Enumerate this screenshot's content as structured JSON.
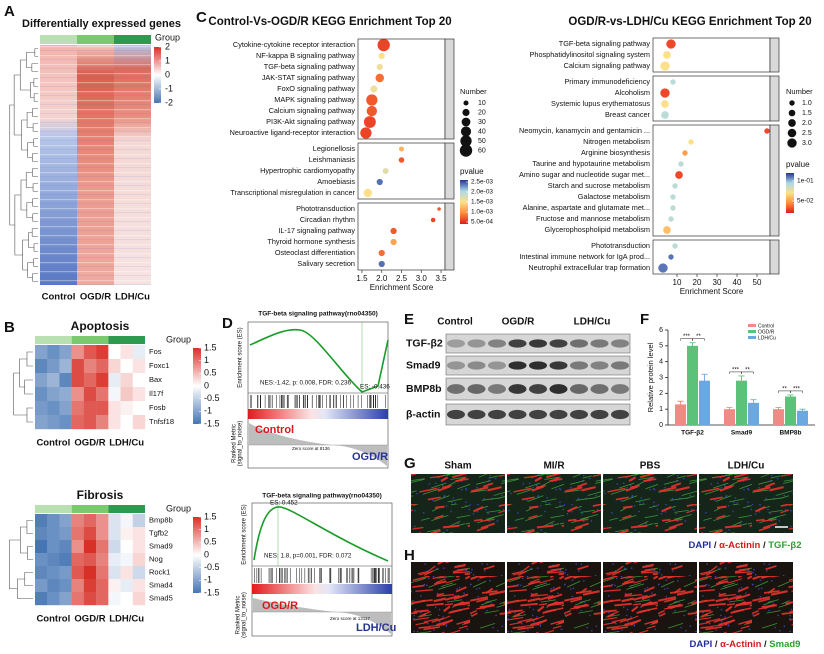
{
  "panel_labels": [
    "A",
    "B",
    "C",
    "D",
    "E",
    "F",
    "G",
    "H"
  ],
  "panel_a": {
    "title": "Differentially expressed genes",
    "legend_title": "Group",
    "scale_ticks": [
      2,
      1,
      0,
      -1,
      -2
    ],
    "groups": [
      "Control",
      "OGD/R",
      "LDH/Cu"
    ]
  },
  "panel_b": {
    "legend_title": "Group",
    "groups": [
      "Control",
      "OGD/R",
      "LDH/Cu"
    ],
    "scale_ticks": [
      1.5,
      1,
      0.5,
      0,
      -0.5,
      -1,
      -1.5
    ],
    "heatmaps": [
      {
        "title": "Apoptosis",
        "genes": [
          "Fos",
          "Foxc1",
          "Bax",
          "Il17f",
          "Fosb",
          "Tnfsf18"
        ],
        "values": [
          [
            -1,
            -1.2,
            -1,
            0.8,
            1.2,
            1.4,
            0,
            0.2,
            -0.2
          ],
          [
            -1.3,
            -1.1,
            -0.8,
            1.3,
            0.9,
            1.1,
            0.3,
            0,
            0.2
          ],
          [
            -1,
            -0.8,
            -1.3,
            1.3,
            1.1,
            1.4,
            -0.2,
            0.3,
            0
          ],
          [
            -1.2,
            -1,
            -0.9,
            0.8,
            1.3,
            1,
            -0.1,
            0.4,
            0.2
          ],
          [
            -1.1,
            -1.2,
            -1,
            1,
            1.2,
            1.2,
            0.2,
            0.1,
            0
          ],
          [
            -1,
            -1.1,
            -1.2,
            1.1,
            1.2,
            0.9,
            0.2,
            0,
            0.3
          ]
        ]
      },
      {
        "title": "Fibrosis",
        "genes": [
          "Bmp8b",
          "Tgfb2",
          "Smad9",
          "Nog",
          "Rock1",
          "Smad4",
          "Smad5"
        ],
        "values": [
          [
            -1.4,
            -1.2,
            -1,
            0.9,
            1.1,
            0.8,
            -0.3,
            -0.1,
            -0.5
          ],
          [
            -1.3,
            -1.2,
            -1.1,
            1,
            1.3,
            0.8,
            -0.3,
            0.1,
            0.2
          ],
          [
            -1.5,
            -1.2,
            -1.3,
            0.8,
            1.5,
            1,
            -0.4,
            0,
            0.2
          ],
          [
            -1.2,
            -1.3,
            -1.4,
            1.1,
            1.2,
            0.9,
            -0.2,
            -0.1,
            0.3
          ],
          [
            -1.3,
            -1.2,
            -1.1,
            1.2,
            1.5,
            1,
            -0.3,
            0.2,
            -0.4
          ],
          [
            -1.1,
            -1.3,
            -1.2,
            0.9,
            1.4,
            1.1,
            0.1,
            -0.2,
            0.2
          ],
          [
            -1.4,
            -1.2,
            -1,
            1,
            1.3,
            1.1,
            -0.1,
            0,
            0.3
          ]
        ]
      }
    ]
  },
  "panel_c": [
    {
      "title": "Control-Vs-OGD/R KEGG Enrichment Top 20",
      "x_label": "Enrichment Score",
      "xlim": [
        1.4,
        3.6
      ],
      "xticks": [
        1.5,
        {
          "value": 2,
          "label": "2.0"
        },
        2.5,
        {
          "value": 3,
          "label": "3.0"
        },
        3.5
      ],
      "size_title": "Number",
      "size_ticks": [
        10,
        20,
        30,
        40,
        50,
        60
      ],
      "color_title": "pvalue",
      "colorlim": [
        0.0004,
        0.0026
      ],
      "color_ticks": [
        {
          "value": 0.0025,
          "label": "2.5e-03"
        },
        {
          "value": 0.002,
          "label": "2.0e-03"
        },
        {
          "value": 0.0015,
          "label": "1.5e-03"
        },
        {
          "value": 0.001,
          "label": "1.0e-03"
        },
        {
          "value": 0.0005,
          "label": "5.0e-04"
        }
      ],
      "facets": [
        {
          "terms": [
            "Cytokine-cytokine receptor interaction",
            "NF-kappa B signaling pathway",
            "TGF-beta signaling pathway",
            "JAK-STAT signaling pathway",
            "FoxO signaling pathway",
            "MAPK signaling pathway",
            "Calcium signaling pathway",
            "PI3K-Akt signaling pathway",
            "Neuroactive ligand-receptor interaction"
          ],
          "scores": [
            2.05,
            2.0,
            1.95,
            1.95,
            1.8,
            1.75,
            1.75,
            1.7,
            1.6
          ],
          "counts": [
            60,
            15,
            15,
            28,
            20,
            50,
            42,
            55,
            50
          ],
          "pvalues": [
            0.0006,
            0.0015,
            0.0016,
            0.0008,
            0.0016,
            0.0007,
            0.0007,
            0.0006,
            0.0006
          ]
        },
        {
          "terms": [
            "Legionellosis",
            "Leishmaniasis",
            "Hypertrophic cardiomyopathy",
            "Amoebiasis",
            "Transcriptional misregulation in cancer"
          ],
          "scores": [
            2.5,
            2.5,
            2.1,
            1.95,
            1.65
          ],
          "counts": [
            10,
            12,
            14,
            15,
            28
          ],
          "pvalues": [
            0.0012,
            0.0007,
            0.0017,
            0.0024,
            0.0015
          ]
        },
        {
          "terms": [
            "Phototransduction",
            "Circadian rhythm",
            "IL-17 signaling pathway",
            "Thyroid hormone synthesis",
            "Osteoclast differentiation",
            "Salivary secretion"
          ],
          "scores": [
            3.45,
            3.3,
            2.3,
            2.3,
            2.0,
            2.0
          ],
          "counts": [
            5,
            8,
            15,
            15,
            15,
            15
          ],
          "pvalues": [
            0.0007,
            0.0006,
            0.0007,
            0.0011,
            0.0008,
            0.0024
          ]
        }
      ]
    },
    {
      "title": "OGD/R-vs-LDH/Cu   KEGG Enrichment Top 20",
      "x_label": "Enrichment Score",
      "xlim": [
        -2,
        56.5
      ],
      "xticks": [
        10,
        20,
        30,
        40,
        50
      ],
      "size_title": "Number",
      "size_ticks": [
        {
          "value": 1,
          "label": "1.0"
        },
        1.5,
        {
          "value": 2,
          "label": "2.0"
        },
        2.5,
        {
          "value": 3,
          "label": "3.0"
        }
      ],
      "color_title": "pvalue",
      "colorlim": [
        0.02,
        0.12
      ],
      "color_ticks": [
        {
          "value": 0.1,
          "label": "1e-01"
        },
        {
          "value": 0.05,
          "label": "5e-02"
        }
      ],
      "facets": [
        {
          "terms": [
            "TGF-beta signaling pathway",
            "Phosphatidylinositol signaling system",
            "Calcium signaling pathway"
          ],
          "scores": [
            7,
            5,
            4
          ],
          "counts": [
            3,
            2,
            3
          ],
          "pvalues": [
            0.03,
            0.07,
            0.07
          ]
        },
        {
          "terms": [
            "Primary immunodeficiency",
            "Alcoholism",
            "Systemic lupus erythematosus",
            "Breast cancer"
          ],
          "scores": [
            8,
            4,
            4,
            4
          ],
          "counts": [
            1,
            3,
            2,
            2
          ],
          "pvalues": [
            0.09,
            0.03,
            0.07,
            0.09
          ]
        },
        {
          "terms": [
            "Neomycin, kanamycin and gentamicin ...",
            "Nitrogen metabolism",
            "Arginine biosynthesis",
            "Taurine and hypotaurine metabolism",
            "Amino sugar and nucleotide sugar met...",
            "Starch and sucrose metabolism",
            "Galactose metabolism",
            "Alanine, aspartate and glutamate met...",
            "Fructose and mannose metabolism",
            "Glycerophospholipid metabolism"
          ],
          "scores": [
            55,
            17,
            14,
            12,
            11,
            9,
            8,
            8,
            7,
            5
          ],
          "counts": [
            1,
            1,
            1,
            1,
            2,
            1,
            1,
            1,
            1,
            2
          ],
          "pvalues": [
            0.03,
            0.07,
            0.05,
            0.09,
            0.03,
            0.09,
            0.09,
            0.09,
            0.09,
            0.06
          ]
        },
        {
          "terms": [
            "Phototransduction",
            "Intestinal immune network for IgA prod...",
            "Neutrophil extracellular trap formation"
          ],
          "scores": [
            9,
            7,
            3
          ],
          "counts": [
            1,
            1,
            3
          ],
          "pvalues": [
            0.09,
            0.11,
            0.11
          ]
        }
      ]
    }
  ],
  "panel_d": {
    "plots": [
      {
        "title": "TGF-beta signaling pathway(rno04350)",
        "es_label": "Enrichment score (ES)",
        "stats": "NES:-1.42, p: 0.008, FDR: 0.236",
        "es": "ES: -0.436",
        "group_left": "Control",
        "group_right": "OGD/R",
        "metric_label": [
          "Ranked Metric",
          "(signal_to_noise)"
        ],
        "zero_score": "Zero score at 8136"
      },
      {
        "title": "TGF-beta signaling pathway(rno04350)",
        "es_label": "Enrichment score (ES)",
        "stats": "NES: 1.8, p=0.001, FDR: 0.072",
        "es": "ES: 0.452",
        "group_left": "OGD/R",
        "group_right": "LDH/Cu",
        "metric_label": [
          "Ranked Metric",
          "(signal_to_noise)"
        ],
        "zero_score": "Zero score at 13117"
      }
    ]
  },
  "panel_e": {
    "columns": [
      "Control",
      "OGD/R",
      "LDH/Cu"
    ],
    "rows": [
      "TGF-β2",
      "Smad9",
      "BMP8b",
      "β-actin"
    ]
  },
  "panel_f": {
    "type": "bar",
    "categories": [
      "TGF-β2",
      "Smad9",
      "BMP8b"
    ],
    "series": [
      {
        "name": "Control",
        "color": "#f08a84",
        "values": [
          1.3,
          1.0,
          1.0
        ],
        "errors": [
          0.2,
          0.1,
          0.1
        ]
      },
      {
        "name": "OGD/R",
        "color": "#5cc27a",
        "values": [
          5.0,
          2.8,
          1.8
        ],
        "errors": [
          0.2,
          0.3,
          0.1
        ]
      },
      {
        "name": "LDH/Cu",
        "color": "#6ca8e0",
        "values": [
          2.8,
          1.4,
          0.9
        ],
        "errors": [
          0.4,
          0.2,
          0.1
        ]
      }
    ],
    "ylim": [
      0,
      6
    ],
    "yticks": [
      0,
      1,
      2,
      3,
      4,
      5,
      6
    ],
    "ylabel": "Relative protein level",
    "annotations": [
      "***",
      "**",
      "***",
      "**",
      "**",
      "***"
    ]
  },
  "panel_g": {
    "columns": [
      "Sham",
      "MI/R",
      "PBS",
      "LDH/Cu"
    ],
    "caption": [
      "DAPI",
      " / ",
      "α-Actinin",
      " / ",
      "TGF-β2"
    ]
  },
  "panel_h": {
    "caption": [
      "DAPI",
      " / ",
      "α-Actinin",
      " / ",
      "Smad9"
    ]
  }
}
